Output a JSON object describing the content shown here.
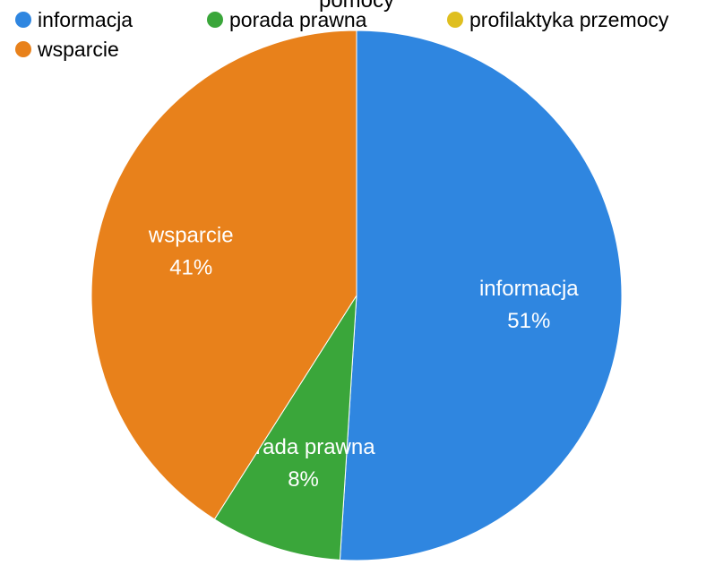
{
  "chart_data": {
    "type": "pie",
    "title": "pomocy",
    "categories": [
      "informacja",
      "porada prawna",
      "profilaktyka przemocy",
      "wsparcie"
    ],
    "values": [
      51,
      8,
      0,
      41
    ],
    "value_labels": [
      "51%",
      "8%",
      null,
      "41%"
    ],
    "colors": [
      "#2f86e0",
      "#3aa63a",
      "#dfbf1f",
      "#e8811b"
    ],
    "legend": "top"
  }
}
